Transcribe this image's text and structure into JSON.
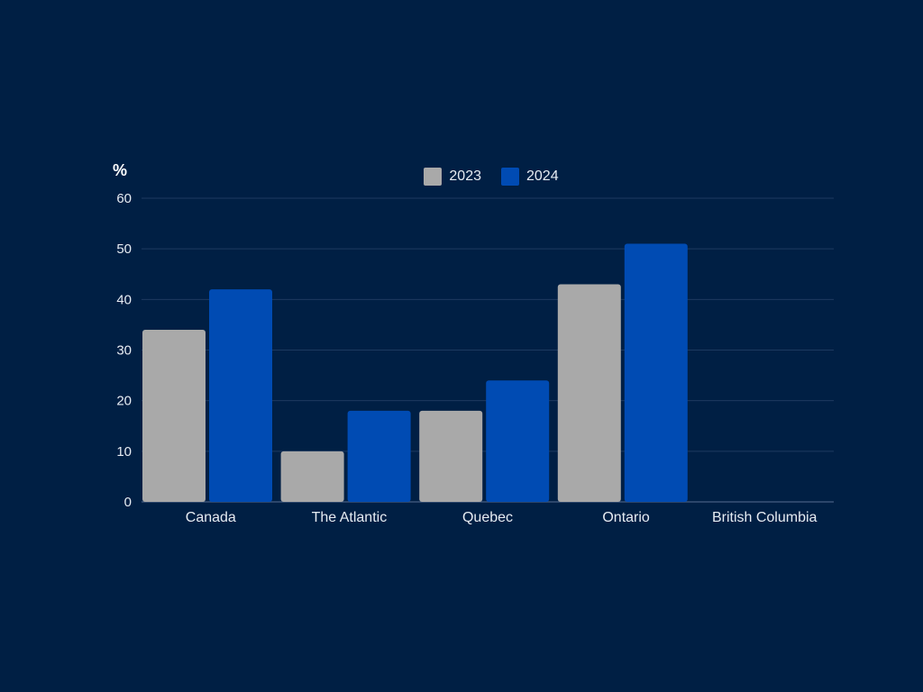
{
  "chart_data": {
    "type": "bar",
    "title": "",
    "xlabel": "",
    "ylabel": "%",
    "ylim": [
      0,
      60
    ],
    "yticks": [
      0,
      10,
      20,
      30,
      40,
      50,
      60
    ],
    "grid": true,
    "legend_position": "top-center",
    "categories": [
      "Canada",
      "The Atlantic",
      "Quebec",
      "Ontario",
      "British Columbia"
    ],
    "series": [
      {
        "name": "2023",
        "color": "#a9a9a9",
        "values": [
          34,
          10,
          18,
          43,
          0
        ]
      },
      {
        "name": "2024",
        "color": "#004bb3",
        "values": [
          42,
          18,
          24,
          51,
          0
        ]
      }
    ]
  },
  "style": {
    "background": "#001f44",
    "gridline_color": "#1e3a60",
    "axis_line_color": "#3a5478",
    "tick_label_color": "#e6ebf2"
  }
}
